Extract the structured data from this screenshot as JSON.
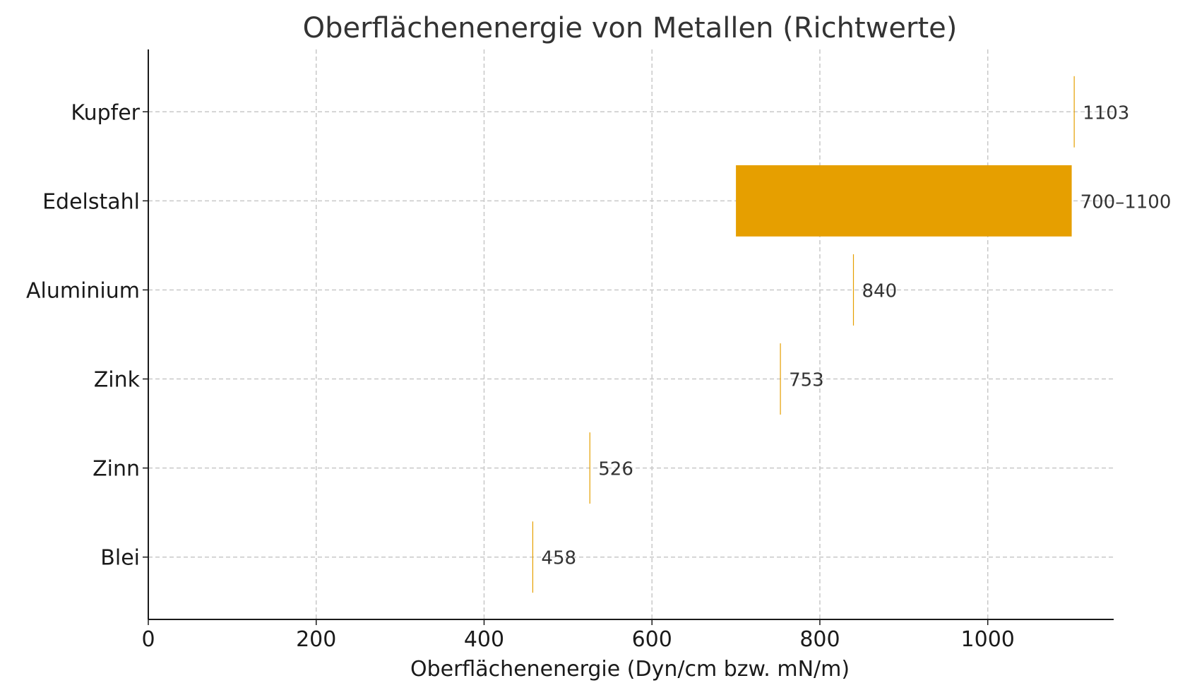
{
  "chart_data": {
    "type": "bar",
    "orientation": "horizontal",
    "title": "Oberflächenenergie von Metallen (Richtwerte)",
    "xlabel": "Oberflächenenergie (Dyn/cm bzw. mN/m)",
    "ylabel": "",
    "xlim": [
      0,
      1150
    ],
    "xticks": [
      "0",
      "200",
      "400",
      "600",
      "800",
      "1000"
    ],
    "grid": true,
    "bar_color": "#E69F00",
    "categories": [
      "Blei",
      "Zinn",
      "Zink",
      "Aluminium",
      "Edelstahl",
      "Kupfer"
    ],
    "bars": [
      {
        "category": "Blei",
        "start": 458,
        "end": 458,
        "label": "458"
      },
      {
        "category": "Zinn",
        "start": 526,
        "end": 526,
        "label": "526"
      },
      {
        "category": "Zink",
        "start": 753,
        "end": 753,
        "label": "753"
      },
      {
        "category": "Aluminium",
        "start": 840,
        "end": 840,
        "label": "840"
      },
      {
        "category": "Edelstahl",
        "start": 700,
        "end": 1100,
        "label": "700–1100"
      },
      {
        "category": "Kupfer",
        "start": 1103,
        "end": 1103,
        "label": "1103"
      }
    ]
  }
}
